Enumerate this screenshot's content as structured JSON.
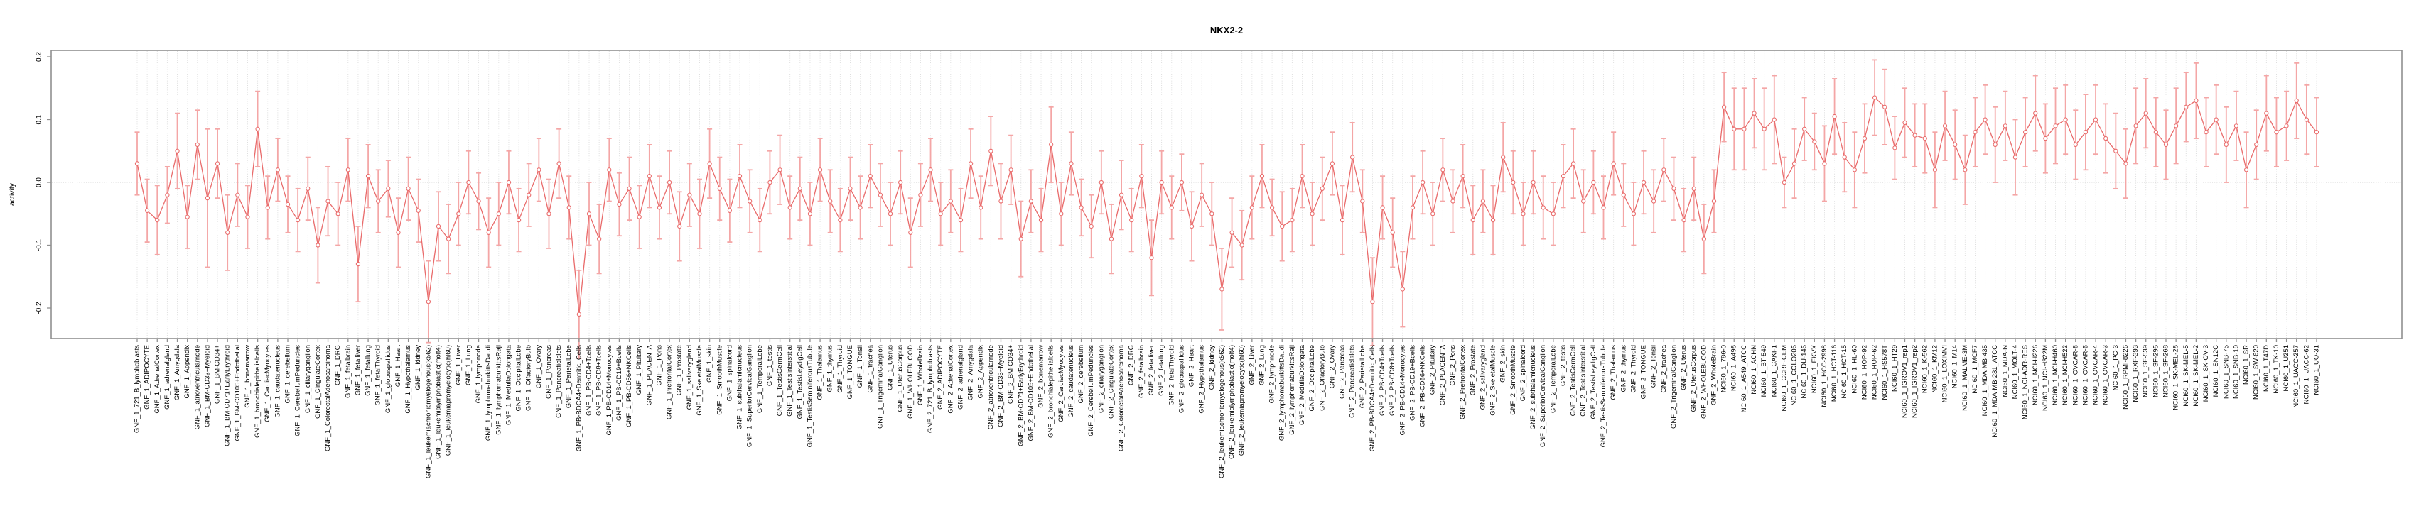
{
  "chart_data": {
    "type": "line",
    "title": "NKX2-2",
    "ylabel": "activity",
    "xlabel": "",
    "ylim": [
      -0.25,
      0.21
    ],
    "yticks": [
      0.2,
      0.1,
      0.0,
      -0.1,
      -0.2
    ],
    "ytick_labels": [
      "0.2",
      "0.1",
      "0.0",
      "-0.1",
      "-0.2"
    ],
    "legend_position": "none",
    "grid": "vertical dotted gridline per category; horizontal dotted line at 0",
    "point_style": "open circles with error bars, connected by line",
    "colors": {
      "line": "#e96b6b",
      "point": "#e96b6b",
      "errorbar": "#f4a6a6",
      "gridline": "#dadada",
      "zero_line": "#cfcfcf",
      "border": "#909090"
    },
    "categories": [
      "GNF_1_721_B_lymphoblasts",
      "GNF_1_ADIPOCYTE",
      "GNF_1_AdrenalCortex",
      "GNF_1_adrenalgland",
      "GNF_1_Amygdala",
      "GNF_1_Appendix",
      "GNF_1_atrioventricularnode",
      "GNF_1_BM-CD33+Myeloid",
      "GNF_1_BM-CD34+",
      "GNF_1_BM-CD71+EarlyErythroid",
      "GNF_1_BM-CD105+Endothelial",
      "GNF_1_bonemarrow",
      "GNF_1_bronchialepithelialcells",
      "GNF_1_CardiacMyocytes",
      "GNF_1_caudatenucleus",
      "GNF_1_cerebellum",
      "GNF_1_CerebellumPeduncles",
      "GNF_1_ciliaryganglion",
      "GNF_1_CingulateCortex",
      "GNF_1_ColorectalAdenocarcinoma",
      "GNF_1_DRG",
      "GNF_1_fetalbrain",
      "GNF_1_fetalliver",
      "GNF_1_fetallung",
      "GNF_1_fetalThyroid",
      "GNF_1_globuspallidus",
      "GNF_1_Heart",
      "GNF_1_Hypothalamus",
      "GNF_1_kidney",
      "GNF_1_leukemiachronicmyelogenous(k562)",
      "GNF_1_leukemialymphoblastic(molt4)",
      "GNF_1_leukemiapromyelocytic(hl60)",
      "GNF_1_Liver",
      "GNF_1_Lung",
      "GNF_1_lymphnode",
      "GNF_1_lymphomaburkittsDaudi",
      "GNF_1_lymphomaburkittsRaji",
      "GNF_1_MedullaOblongata",
      "GNF_1_OccipitalLobe",
      "GNF_1_OlfactoryBulb",
      "GNF_1_Ovary",
      "GNF_1_Pancreas",
      "GNF_1_PancreaticIslets",
      "GNF_1_ParietalLobe",
      "GNF_1_PB-BDCA4+Dentritic_Cells",
      "GNF_1_PB-CD4+Tcells",
      "GNF_1_PB-CD8+Tcells",
      "GNF_1_PB-CD14+Monocytes",
      "GNF_1_PB-CD19+Bcells",
      "GNF_1_PB-CD56+NKCells",
      "GNF_1_Pituitary",
      "GNF_1_PLACENTA",
      "GNF_1_Pons",
      "GNF_1_PrefrontalCortex",
      "GNF_1_Prostate",
      "GNF_1_salivarygland",
      "GNF_1_SkeletalMuscle",
      "GNF_1_skin",
      "GNF_1_SmoothMuscle",
      "GNF_1_spinalcord",
      "GNF_1_subthalamicnucleus",
      "GNF_1_SuperiorCervicalGanglion",
      "GNF_1_TemporalLobe",
      "GNF_1_testis",
      "GNF_1_TestisGermCell",
      "GNF_1_TestisInterstitial",
      "GNF_1_TestisLeydigCell",
      "GNF_1_TestisSeminiferousTubule",
      "GNF_1_Thalamus",
      "GNF_1_thymus",
      "GNF_1_Thyroid",
      "GNF_1_TONGUE",
      "GNF_1_Tonsil",
      "GNF_1_trachea",
      "GNF_1_TrigeminalGanglion",
      "GNF_1_Uterus",
      "GNF_1_UterusCorpus",
      "GNF_1_WHOLEBLOOD",
      "GNF_1_WholeBrain",
      "GNF_2_721_B_lymphoblasts",
      "GNF_2_ADIPOCYTE",
      "GNF_2_AdrenalCortex",
      "GNF_2_adrenalgland",
      "GNF_2_Amygdala",
      "GNF_2_Appendix",
      "GNF_2_atrioventricularnode",
      "GNF_2_BM-CD33+Myeloid",
      "GNF_2_BM-CD34+",
      "GNF_2_BM-CD71+EarlyErythroid",
      "GNF_2_BM-CD105+Endothelial",
      "GNF_2_bonemarrow",
      "GNF_2_bronchialepithelialcells",
      "GNF_2_CardiacMyocytes",
      "GNF_2_caudatenucleus",
      "GNF_2_cerebellum",
      "GNF_2_CerebellumPeduncles",
      "GNF_2_ciliaryganglion",
      "GNF_2_CingulateCortex",
      "GNF_2_ColorectalAdenocarcinoma",
      "GNF_2_DRG",
      "GNF_2_fetalbrain",
      "GNF_2_fetalliver",
      "GNF_2_fetallung",
      "GNF_2_fetalThyroid",
      "GNF_2_globuspallidus",
      "GNF_2_Heart",
      "GNF_2_Hypothalamus",
      "GNF_2_kidney",
      "GNF_2_leukemiachronicmyelogenous(k562)",
      "GNF_2_leukemialymphoblastic(molt4)",
      "GNF_2_leukemiapromyelocytic(hl60)",
      "GNF_2_Liver",
      "GNF_2_Lung",
      "GNF_2_lymphnode",
      "GNF_2_lymphomaburkittsDaudi",
      "GNF_2_lymphomaburkittsRaji",
      "GNF_2_MedullaOblongata",
      "GNF_2_OccipitalLobe",
      "GNF_2_OlfactoryBulb",
      "GNF_2_Ovary",
      "GNF_2_Pancreas",
      "GNF_2_PancreaticIslets",
      "GNF_2_ParietalLobe",
      "GNF_2_PB-BDCA4+Dentritic_Cells",
      "GNF_2_PB-CD4+Tcells",
      "GNF_2_PB-CD8+Tcells",
      "GNF_2_PB-CD14+Monocytes",
      "GNF_2_PB-CD19+Bcells",
      "GNF_2_PB-CD56+NKCells",
      "GNF_2_Pituitary",
      "GNF_2_PLACENTA",
      "GNF_2_Pons",
      "GNF_2_PrefrontalCortex",
      "GNF_2_Prostate",
      "GNF_2_salivarygland",
      "GNF_2_SkeletalMuscle",
      "GNF_2_skin",
      "GNF_2_SmoothMuscle",
      "GNF_2_spinalcord",
      "GNF_2_subthalamicnucleus",
      "GNF_2_SuperiorCervicalGanglion",
      "GNF_2_TemporalLobe",
      "GNF_2_testis",
      "GNF_2_TestisGermCell",
      "GNF_2_TestisInterstitial",
      "GNF_2_TestisLeydigCell",
      "GNF_2_TestisSeminiferousTubule",
      "GNF_2_Thalamus",
      "GNF_2_thymus",
      "GNF_2_Thyroid",
      "GNF_2_TONGUE",
      "GNF_2_Tonsil",
      "GNF_2_trachea",
      "GNF_2_TrigeminalGanglion",
      "GNF_2_Uterus",
      "GNF_2_UterusCorpus",
      "GNF_2_WHOLEBLOOD",
      "GNF_2_WholeBrain",
      "NCI60_1_786-0",
      "NCI60_1_A498",
      "NCI60_1_A549_ATCC",
      "NCI60_1_ACHN",
      "NCI60_1_BT-549",
      "NCI60_1_CAKI-1",
      "NCI60_1_CCRF-CEM",
      "NCI60_1_COLO205",
      "NCI60_1_DU-145",
      "NCI60_1_EKVX",
      "NCI60_1_HCC-2998",
      "NCI60_1_HCT-116",
      "NCI60_1_HCT-15",
      "NCI60_1_HL-60",
      "NCI60_1_HOP-92",
      "NCI60_1_HOP-62",
      "NCI60_1_HS578T",
      "NCI60_1_HT29",
      "NCI60_1_IGROV1_rep1",
      "NCI60_1_IGROV1_rep2",
      "NCI60_1_K-562",
      "NCI60_1_KM12",
      "NCI60_1_LOXIMVI",
      "NCI60_1_M14",
      "NCI60_1_MALME-3M",
      "NCI60_1_MCF7",
      "NCI60_1_MDA-MB-435",
      "NCI60_1_MDA-MB-231_ATCC",
      "NCI60_1_MDA-N",
      "NCI60_1_MOLT-4",
      "NCI60_1_NCI-ADR-RES",
      "NCI60_1_NCI-H226",
      "NCI60_1_NCI-H322M",
      "NCI60_1_NCI-H460",
      "NCI60_1_NCI-H522",
      "NCI60_1_OVCAR-8",
      "NCI60_1_OVCAR-5",
      "NCI60_1_OVCAR-4",
      "NCI60_1_OVCAR-3",
      "NCI60_1_PC-3",
      "NCI60_1_RPMI-8226",
      "NCI60_1_RXF-393",
      "NCI60_1_SF-539",
      "NCI60_1_SF-295",
      "NCI60_1_SF-268",
      "NCI60_1_SK-MEL-28",
      "NCI60_1_SK-MEL-5",
      "NCI60_1_SK-MEL-2",
      "NCI60_1_SK-OV-3",
      "NCI60_1_SN12C",
      "NCI60_1_SNB-75",
      "NCI60_1_SNB-19",
      "NCI60_1_SR",
      "NCI60_1_SW-620",
      "NCI60_1_T47D",
      "NCI60_1_TK-10",
      "NCI60_1_U251",
      "NCI60_1_UACC-257",
      "NCI60_1_UACC-62",
      "NCI60_1_UO-31"
    ],
    "series": [
      {
        "name": "activity",
        "values": [
          0.03,
          -0.045,
          -0.06,
          -0.02,
          0.05,
          -0.055,
          0.06,
          -0.025,
          0.03,
          -0.08,
          -0.02,
          -0.055,
          0.085,
          -0.04,
          0.02,
          -0.035,
          -0.06,
          -0.01,
          -0.1,
          -0.03,
          -0.05,
          0.02,
          -0.13,
          0.01,
          -0.03,
          -0.01,
          -0.08,
          -0.01,
          -0.045,
          -0.19,
          -0.07,
          -0.09,
          -0.05,
          0.0,
          -0.03,
          -0.08,
          -0.05,
          0.0,
          -0.06,
          -0.02,
          0.02,
          -0.05,
          0.03,
          -0.04,
          -0.21,
          -0.05,
          -0.09,
          0.02,
          -0.035,
          -0.01,
          -0.055,
          0.01,
          -0.04,
          0.0,
          -0.07,
          -0.02,
          -0.05,
          0.03,
          -0.01,
          -0.045,
          0.01,
          -0.03,
          -0.06,
          0.0,
          0.02,
          -0.04,
          -0.01,
          -0.05,
          0.02,
          -0.03,
          -0.06,
          -0.01,
          -0.04,
          0.01,
          -0.02,
          -0.05,
          0.0,
          -0.08,
          -0.02,
          0.02,
          -0.05,
          -0.03,
          -0.06,
          0.03,
          -0.04,
          0.05,
          -0.03,
          0.02,
          -0.09,
          -0.03,
          -0.06,
          0.06,
          -0.05,
          0.03,
          -0.04,
          -0.07,
          0.0,
          -0.09,
          -0.02,
          -0.06,
          0.01,
          -0.12,
          0.0,
          -0.04,
          0.0,
          -0.07,
          -0.02,
          -0.05,
          -0.17,
          -0.08,
          -0.1,
          -0.04,
          0.01,
          -0.04,
          -0.07,
          -0.06,
          0.01,
          -0.05,
          -0.01,
          0.03,
          -0.06,
          0.04,
          -0.03,
          -0.19,
          -0.04,
          -0.08,
          -0.17,
          -0.04,
          0.0,
          -0.05,
          0.02,
          -0.03,
          0.01,
          -0.06,
          -0.03,
          -0.06,
          0.04,
          0.0,
          -0.05,
          0.0,
          -0.04,
          -0.05,
          0.01,
          0.03,
          -0.03,
          0.0,
          -0.04,
          0.03,
          -0.02,
          -0.05,
          0.0,
          -0.03,
          0.02,
          -0.01,
          -0.06,
          -0.01,
          -0.09,
          -0.03,
          0.12,
          0.085,
          0.085,
          0.11,
          0.085,
          0.1,
          0.0,
          0.03,
          0.085,
          0.065,
          0.03,
          0.105,
          0.04,
          0.02,
          0.07,
          0.135,
          0.12,
          0.055,
          0.095,
          0.075,
          0.07,
          0.02,
          0.09,
          0.06,
          0.02,
          0.08,
          0.1,
          0.06,
          0.09,
          0.04,
          0.08,
          0.11,
          0.07,
          0.09,
          0.1,
          0.06,
          0.08,
          0.1,
          0.07,
          0.05,
          0.03,
          0.09,
          0.11,
          0.08,
          0.06,
          0.09,
          0.12,
          0.13,
          0.08,
          0.1,
          0.06,
          0.09,
          0.02,
          0.06,
          0.11,
          0.08,
          0.09,
          0.13,
          0.1,
          0.08
        ],
        "errors": [
          0.05,
          0.05,
          0.055,
          0.045,
          0.06,
          0.05,
          0.055,
          0.11,
          0.055,
          0.06,
          0.05,
          0.05,
          0.06,
          0.05,
          0.05,
          0.045,
          0.05,
          0.05,
          0.06,
          0.055,
          0.05,
          0.05,
          0.06,
          0.05,
          0.05,
          0.045,
          0.055,
          0.05,
          0.05,
          0.065,
          0.055,
          0.055,
          0.05,
          0.05,
          0.045,
          0.055,
          0.05,
          0.05,
          0.05,
          0.05,
          0.05,
          0.055,
          0.055,
          0.05,
          0.07,
          0.05,
          0.055,
          0.05,
          0.05,
          0.05,
          0.05,
          0.05,
          0.05,
          0.05,
          0.055,
          0.05,
          0.055,
          0.055,
          0.05,
          0.05,
          0.05,
          0.05,
          0.05,
          0.05,
          0.055,
          0.05,
          0.05,
          0.05,
          0.05,
          0.05,
          0.05,
          0.05,
          0.05,
          0.05,
          0.05,
          0.05,
          0.05,
          0.055,
          0.05,
          0.05,
          0.05,
          0.05,
          0.05,
          0.055,
          0.05,
          0.055,
          0.06,
          0.055,
          0.06,
          0.05,
          0.05,
          0.06,
          0.05,
          0.05,
          0.045,
          0.05,
          0.05,
          0.055,
          0.055,
          0.05,
          0.05,
          0.06,
          0.05,
          0.05,
          0.045,
          0.055,
          0.05,
          0.05,
          0.065,
          0.055,
          0.055,
          0.05,
          0.05,
          0.045,
          0.055,
          0.05,
          0.05,
          0.05,
          0.05,
          0.05,
          0.055,
          0.055,
          0.05,
          0.07,
          0.05,
          0.055,
          0.06,
          0.05,
          0.05,
          0.05,
          0.05,
          0.05,
          0.05,
          0.055,
          0.05,
          0.055,
          0.055,
          0.05,
          0.05,
          0.05,
          0.05,
          0.05,
          0.05,
          0.055,
          0.05,
          0.05,
          0.05,
          0.05,
          0.05,
          0.05,
          0.05,
          0.05,
          0.05,
          0.05,
          0.05,
          0.05,
          0.055,
          0.05,
          0.055,
          0.065,
          0.065,
          0.055,
          0.065,
          0.07,
          0.04,
          0.055,
          0.05,
          0.045,
          0.06,
          0.06,
          0.055,
          0.06,
          0.055,
          0.06,
          0.06,
          0.05,
          0.055,
          0.05,
          0.055,
          0.06,
          0.055,
          0.055,
          0.055,
          0.055,
          0.055,
          0.06,
          0.055,
          0.06,
          0.055,
          0.06,
          0.055,
          0.06,
          0.055,
          0.055,
          0.06,
          0.055,
          0.055,
          0.06,
          0.055,
          0.06,
          0.055,
          0.055,
          0.055,
          0.06,
          0.055,
          0.06,
          0.055,
          0.055,
          0.06,
          0.055,
          0.06,
          0.055,
          0.06,
          0.055,
          0.055,
          0.06,
          0.055,
          0.055
        ]
      }
    ]
  }
}
